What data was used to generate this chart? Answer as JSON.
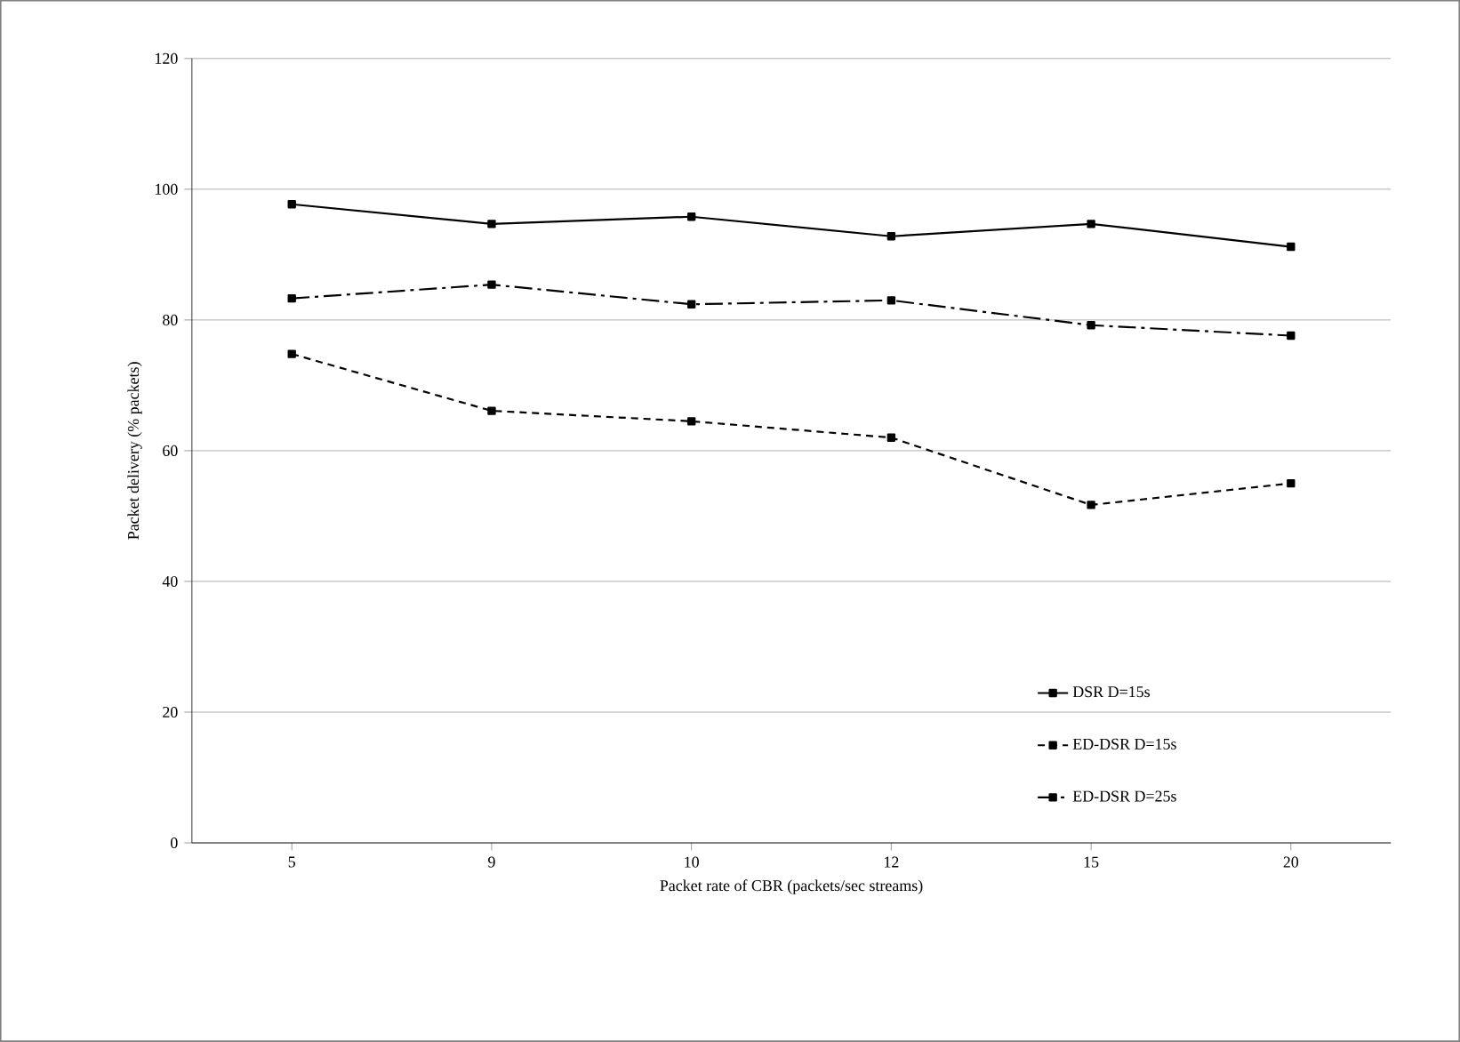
{
  "chart_data": {
    "type": "line",
    "xlabel": "Packet rate of CBR (packets/sec streams)",
    "ylabel": "Packet delivery (% packets)",
    "categories": [
      "5",
      "9",
      "10",
      "12",
      "15",
      "20"
    ],
    "ylim": [
      0,
      120
    ],
    "yticks": [
      0,
      20,
      40,
      60,
      80,
      100,
      120
    ],
    "grid": "y",
    "legend": "bottom right",
    "marker": "square",
    "series": [
      {
        "name": "DSR D=15s",
        "color": "#000000",
        "line_style": "solid",
        "values": [
          97.7,
          94.7,
          95.8,
          92.8,
          94.7,
          91.2
        ]
      },
      {
        "name": "ED-DSR D=15s",
        "color": "#000000",
        "line_style": "dashed",
        "values": [
          74.8,
          66.1,
          64.5,
          62.0,
          51.7,
          55.0
        ]
      },
      {
        "name": "ED-DSR D=25s",
        "color": "#000000",
        "line_style": "dashdot",
        "values": [
          83.3,
          85.4,
          82.4,
          83.0,
          79.2,
          77.6
        ]
      }
    ]
  }
}
